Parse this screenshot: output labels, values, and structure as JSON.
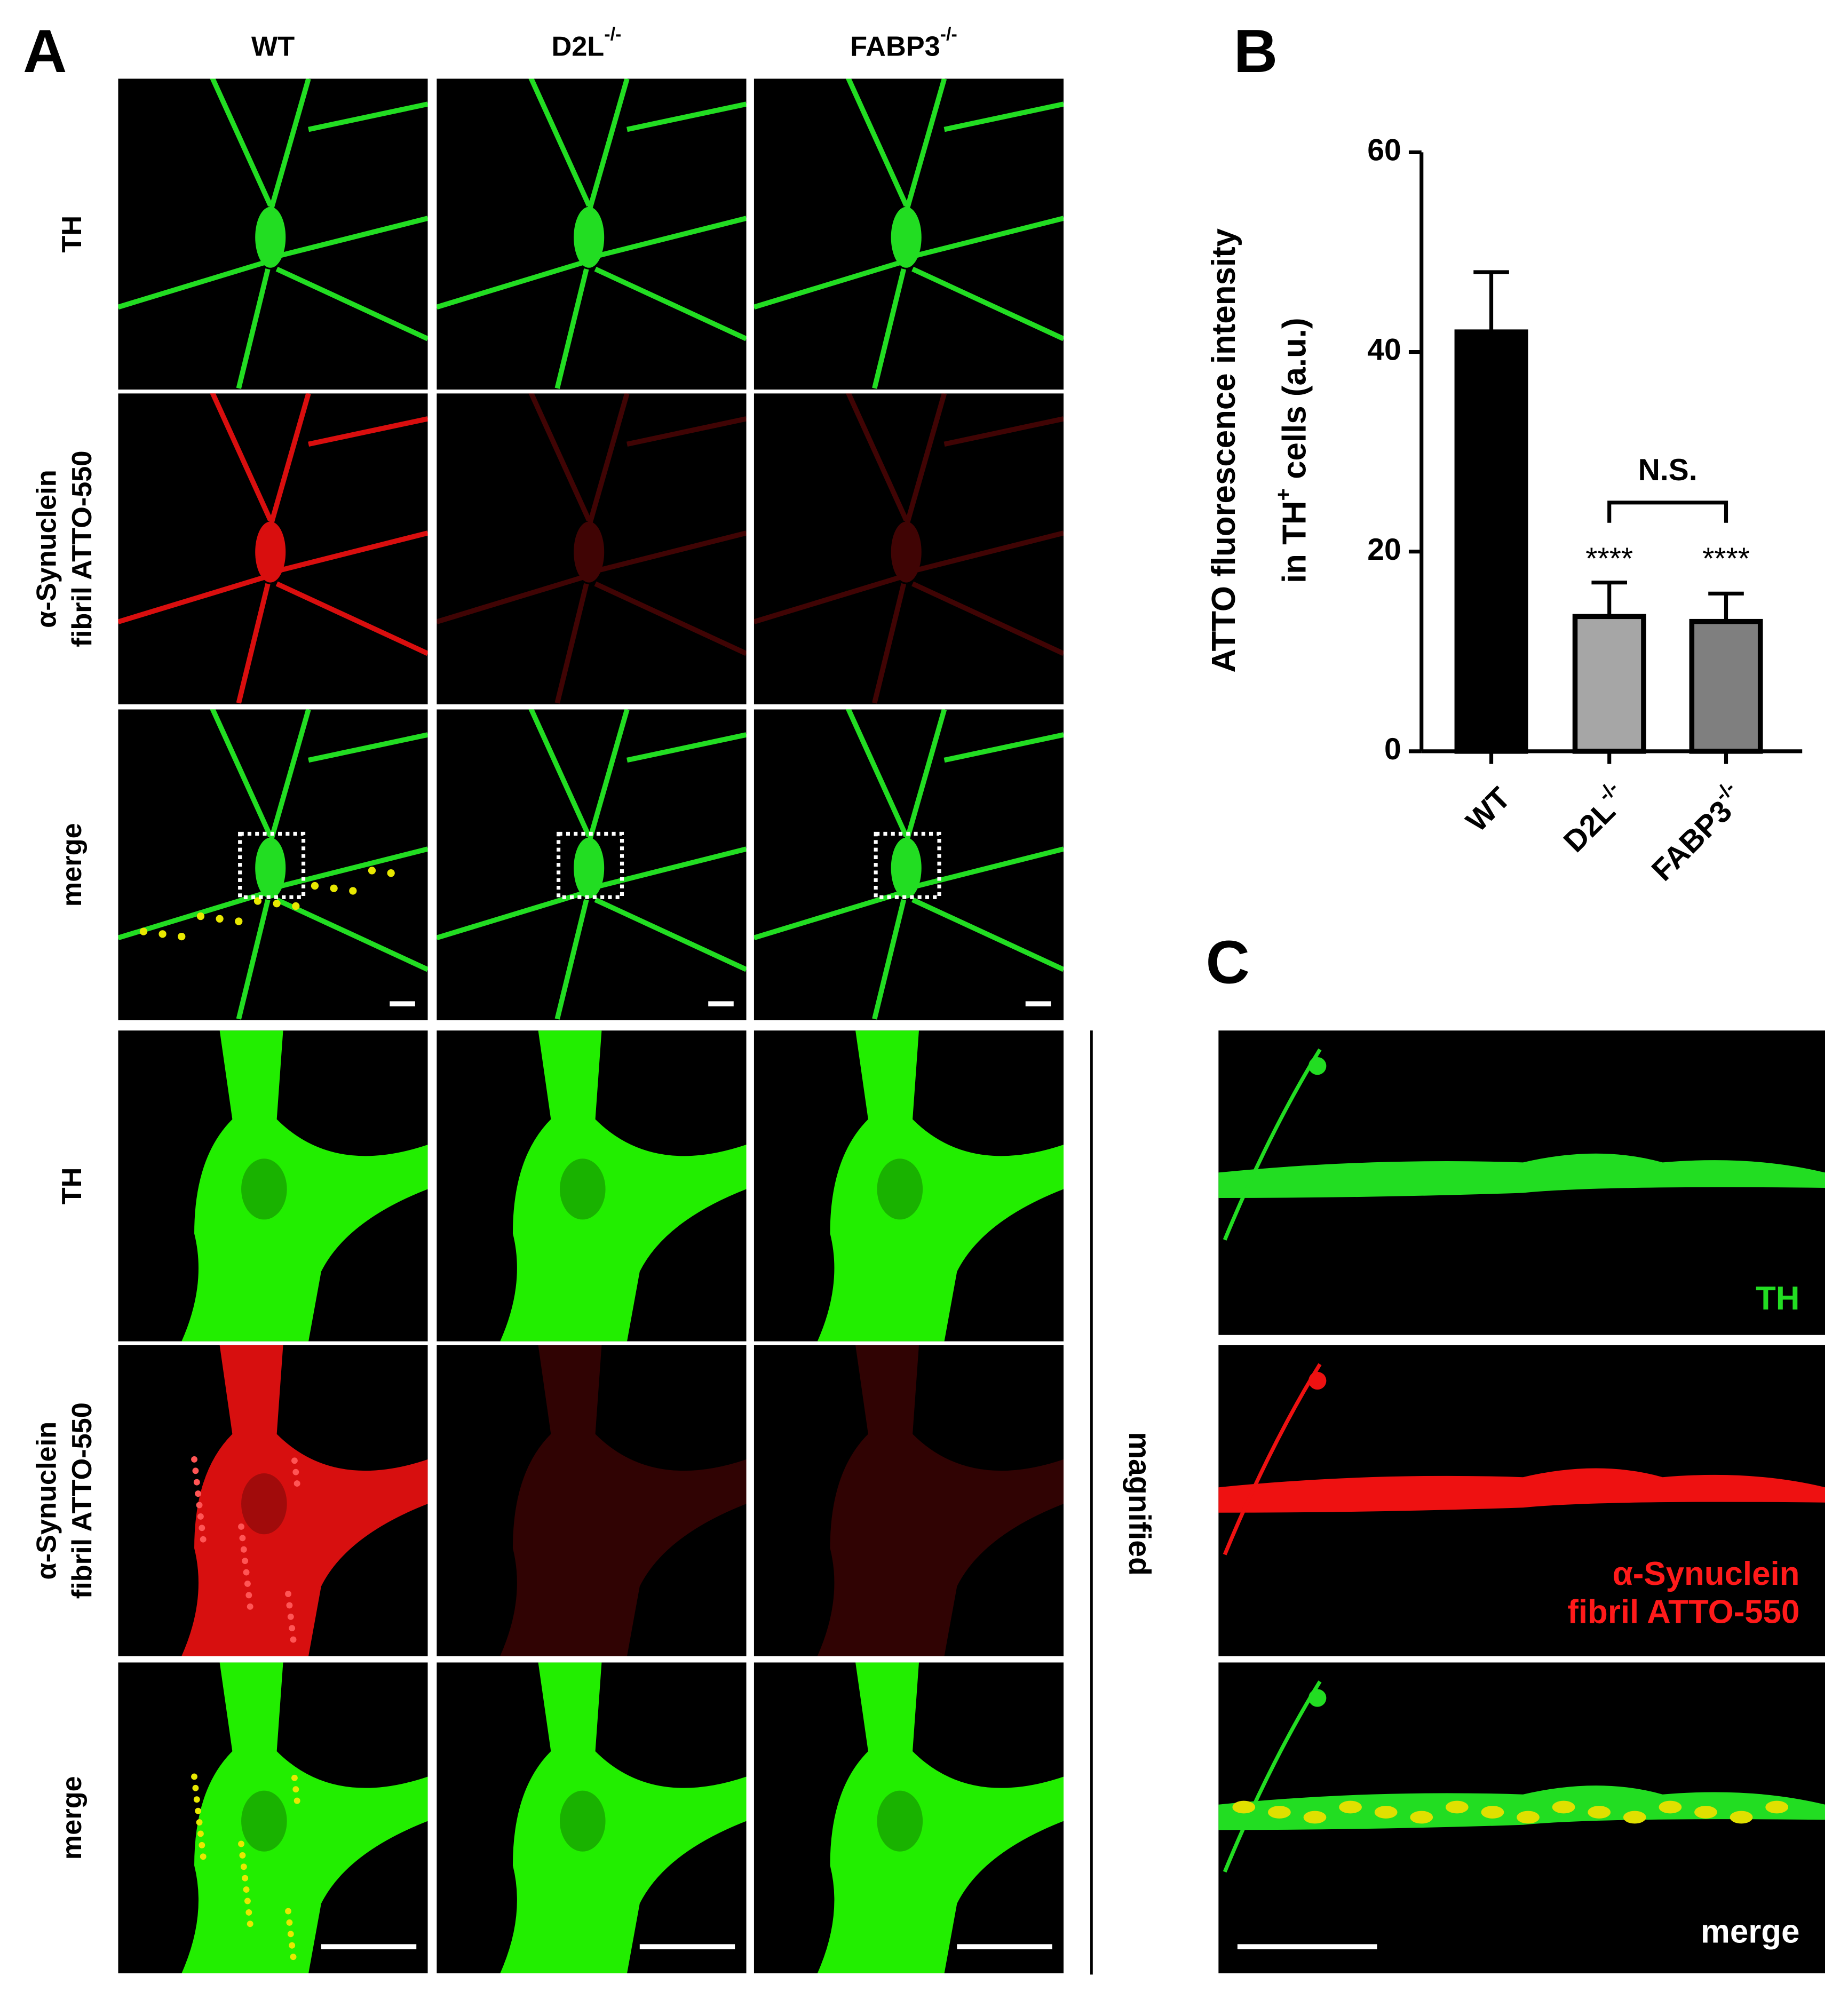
{
  "panels": {
    "a": "A",
    "b": "B",
    "c": "C"
  },
  "columns": [
    {
      "text": "WT",
      "sup": null
    },
    {
      "text": "D2L",
      "sup": "-/-"
    },
    {
      "text": "FABP3",
      "sup": "-/-"
    }
  ],
  "row_labels": {
    "th": "TH",
    "syn_line1": "α-Synuclein",
    "syn_line2": "fibril ATTO-550",
    "merge": "merge"
  },
  "magnified": "magnified",
  "panel_c": {
    "th": "TH",
    "syn_line1": "α-Synuclein",
    "syn_line2": "fibril ATTO-550",
    "merge": "merge"
  },
  "chart_data": {
    "type": "bar",
    "ylabel_line1": "ATTO fluorescence intensity",
    "ylabel_line2": {
      "before": "in TH",
      "sup": "+",
      "after": " cells (a.u.)"
    },
    "categories": [
      "WT",
      "D2L",
      "FABP3"
    ],
    "category_sups": [
      null,
      "-/-",
      "-/-"
    ],
    "values": [
      42,
      13.5,
      13
    ],
    "errors": [
      6,
      3.4,
      2.8
    ],
    "colors": [
      "#000000",
      "#a6a6a6",
      "#7f7f7f"
    ],
    "stars": [
      null,
      "****",
      "****"
    ],
    "comparison": "N.S.",
    "ylim": [
      0,
      60
    ],
    "yticks": [
      0,
      20,
      40,
      60
    ]
  }
}
